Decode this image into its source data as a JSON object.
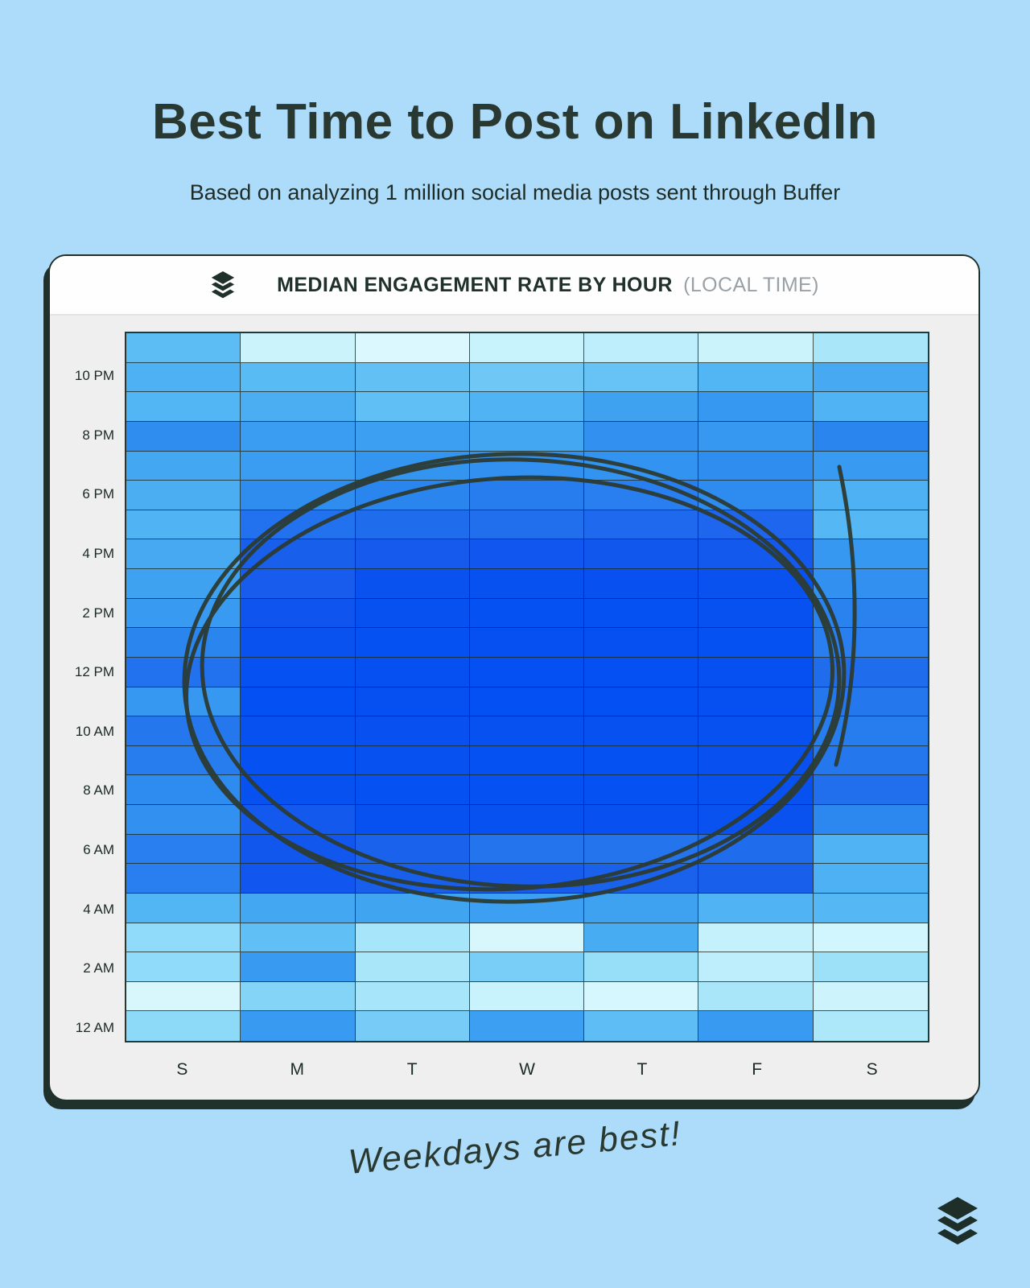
{
  "page": {
    "title": "Best Time to Post on LinkedIn",
    "subtitle": "Based on analyzing 1 million social media posts sent through Buffer",
    "footnote": "Weekdays are best!"
  },
  "card": {
    "header": {
      "logo_icon": "buffer-layers-logo",
      "title": "MEDIAN ENGAGEMENT RATE BY HOUR",
      "title_suffix": "(LOCAL TIME)"
    }
  },
  "colors": {
    "page_background": "#addbfa",
    "card_background": "#efefef",
    "header_background": "#fefefe",
    "dark_accent": "#20302a",
    "muted_header_text": "#9aa1a6",
    "annotation_ink": "#2c3b33"
  },
  "chart_data": {
    "type": "heatmap",
    "title": "MEDIAN ENGAGEMENT RATE BY HOUR (LOCAL TIME)",
    "x_labels": [
      "S",
      "M",
      "T",
      "W",
      "T",
      "F",
      "S"
    ],
    "y_axis_tick_labels": [
      "10 PM",
      "8 PM",
      "6 PM",
      "4 PM",
      "2 PM",
      "12 PM",
      "10 AM",
      "8 AM",
      "6 AM",
      "4 AM",
      "2 AM",
      "12 AM"
    ],
    "value_meaning": "relative median engagement intensity 0-100, estimated from cell color (light cyan = low, deep blue = high)",
    "rows": [
      {
        "hour": "11 PM",
        "axis_label": "",
        "values": [
          47,
          9,
          3,
          10,
          13,
          9,
          19
        ]
      },
      {
        "hour": "10 PM",
        "axis_label": "10 PM",
        "values": [
          53,
          48,
          44,
          39,
          42,
          51,
          56
        ]
      },
      {
        "hour": "9 PM",
        "axis_label": "",
        "values": [
          51,
          54,
          45,
          52,
          59,
          63,
          52
        ]
      },
      {
        "hour": "8 PM",
        "axis_label": "8 PM",
        "values": [
          67,
          61,
          60,
          57,
          66,
          63,
          70
        ]
      },
      {
        "hour": "7 PM",
        "axis_label": "",
        "values": [
          57,
          61,
          64,
          66,
          65,
          67,
          62
        ]
      },
      {
        "hour": "6 PM",
        "axis_label": "6 PM",
        "values": [
          54,
          67,
          70,
          73,
          72,
          68,
          53
        ]
      },
      {
        "hour": "5 PM",
        "axis_label": "",
        "values": [
          52,
          77,
          79,
          78,
          80,
          81,
          50
        ]
      },
      {
        "hour": "4 PM",
        "axis_label": "4 PM",
        "values": [
          56,
          84,
          86,
          89,
          88,
          87,
          63
        ]
      },
      {
        "hour": "3 PM",
        "axis_label": "",
        "values": [
          59,
          85,
          94,
          96,
          95,
          94,
          66
        ]
      },
      {
        "hour": "2 PM",
        "axis_label": "2 PM",
        "values": [
          62,
          90,
          96,
          97,
          97,
          96,
          71
        ]
      },
      {
        "hour": "1 PM",
        "axis_label": "",
        "values": [
          70,
          94,
          97,
          98,
          98,
          97,
          72
        ]
      },
      {
        "hour": "12 PM",
        "axis_label": "12 PM",
        "values": [
          77,
          97,
          98,
          100,
          99,
          98,
          79
        ]
      },
      {
        "hour": "11 AM",
        "axis_label": "",
        "values": [
          63,
          99,
          98,
          100,
          99,
          98,
          75
        ]
      },
      {
        "hour": "10 AM",
        "axis_label": "10 AM",
        "values": [
          75,
          96,
          95,
          96,
          96,
          96,
          73
        ]
      },
      {
        "hour": "9 AM",
        "axis_label": "",
        "values": [
          73,
          97,
          96,
          97,
          97,
          95,
          75
        ]
      },
      {
        "hour": "8 AM",
        "axis_label": "8 AM",
        "values": [
          68,
          96,
          97,
          97,
          97,
          96,
          78
        ]
      },
      {
        "hour": "7 AM",
        "axis_label": "",
        "values": [
          66,
          87,
          96,
          96,
          95,
          94,
          69
        ]
      },
      {
        "hour": "6 AM",
        "axis_label": "6 AM",
        "values": [
          72,
          88,
          83,
          76,
          76,
          79,
          52
        ]
      },
      {
        "hour": "5 AM",
        "axis_label": "",
        "values": [
          72,
          89,
          84,
          85,
          83,
          84,
          53
        ]
      },
      {
        "hour": "4 AM",
        "axis_label": "4 AM",
        "values": [
          51,
          57,
          58,
          60,
          59,
          52,
          50
        ]
      },
      {
        "hour": "3 AM",
        "axis_label": "",
        "values": [
          27,
          45,
          20,
          4,
          55,
          11,
          6
        ]
      },
      {
        "hour": "2 AM",
        "axis_label": "2 AM",
        "values": [
          27,
          62,
          19,
          35,
          25,
          13,
          23
        ]
      },
      {
        "hour": "1 AM",
        "axis_label": "",
        "values": [
          4,
          31,
          20,
          10,
          5,
          19,
          8
        ]
      },
      {
        "hour": "12 AM",
        "axis_label": "12 AM",
        "values": [
          28,
          62,
          36,
          60,
          46,
          62,
          18
        ]
      }
    ],
    "color_scale": [
      {
        "v": 0,
        "c": "#e2fbfe"
      },
      {
        "v": 10,
        "c": "#c8f2fc"
      },
      {
        "v": 20,
        "c": "#a6e5fa"
      },
      {
        "v": 30,
        "c": "#87d6f8"
      },
      {
        "v": 40,
        "c": "#6bc5f5"
      },
      {
        "v": 50,
        "c": "#55b8f4"
      },
      {
        "v": 55,
        "c": "#48acf2"
      },
      {
        "v": 60,
        "c": "#3c9ff1"
      },
      {
        "v": 65,
        "c": "#3293f0"
      },
      {
        "v": 70,
        "c": "#2b85ef"
      },
      {
        "v": 75,
        "c": "#2577ee"
      },
      {
        "v": 80,
        "c": "#1e69ed"
      },
      {
        "v": 85,
        "c": "#175cec"
      },
      {
        "v": 90,
        "c": "#0f54ee"
      },
      {
        "v": 95,
        "c": "#0851f0"
      },
      {
        "v": 100,
        "c": "#0450f2"
      }
    ],
    "annotation": {
      "shape": "hand-drawn multi-stroke circle",
      "meaning": "highlights weekday daytime hours (~5 AM - 6 PM, Mon-Fri) as best times",
      "ink": "#2c3b33"
    },
    "grid": true,
    "legend": "none"
  }
}
